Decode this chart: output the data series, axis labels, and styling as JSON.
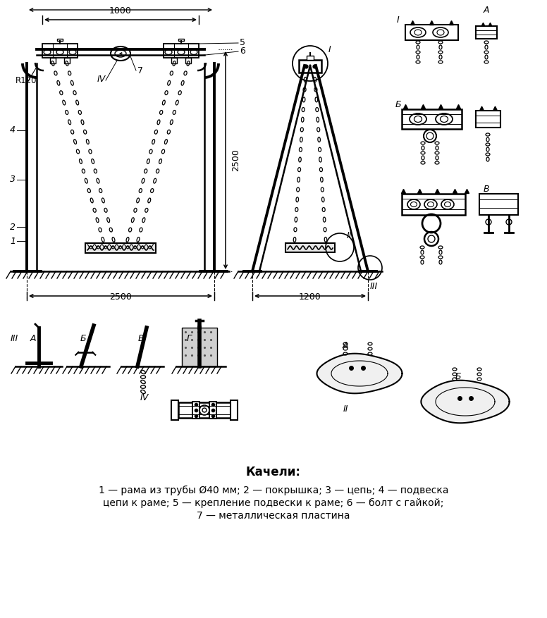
{
  "title": "Качели:",
  "cap1": "1 — рама из трубы Ø40 мм; 2 — покрышка; 3 — цепь; 4 — подвеска",
  "cap2": "цепи к раме; 5 — крепление подвески к раме; 6 — болт с гайкой;",
  "cap3": "7 — металлическая пластина",
  "bg": "#ffffff",
  "lc": "#000000",
  "dim_1000": "1000",
  "dim_2500": "2500",
  "dim_1200": "1200",
  "dim_R120": "R120"
}
